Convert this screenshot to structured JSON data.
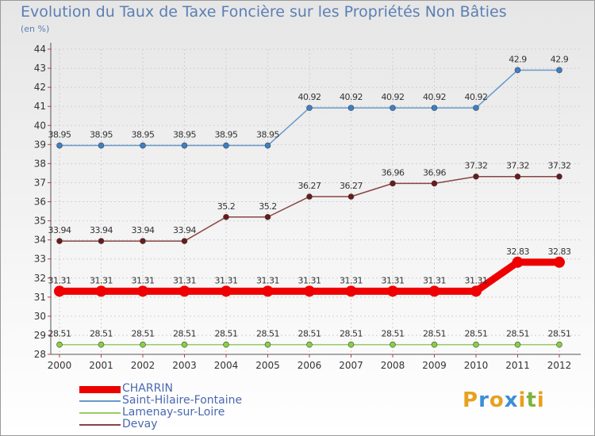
{
  "header": {
    "title": "Evolution du Taux de Taxe Foncière sur les Propriétés Non Bâties",
    "unit": "(en %)"
  },
  "logo": {
    "letters": [
      "P",
      "r",
      "o",
      "x",
      "i",
      "t",
      "i"
    ],
    "colors": [
      "#e8a020",
      "#3c8fd4",
      "#e8a020",
      "#3c8fd4",
      "#e8a020",
      "#7cb342",
      "#e8a020"
    ]
  },
  "chart_data": {
    "type": "line",
    "title": "Evolution du Taux de Taxe Foncière sur les Propriétés Non Bâties",
    "ylabel": "(en %)",
    "xlabel": "",
    "x": [
      "2000",
      "2001",
      "2002",
      "2003",
      "2004",
      "2005",
      "2006",
      "2007",
      "2008",
      "2009",
      "2010",
      "2011",
      "2012"
    ],
    "ylim": [
      28,
      44
    ],
    "yticks": [
      28,
      29,
      30,
      31,
      32,
      33,
      34,
      35,
      36,
      37,
      38,
      39,
      40,
      41,
      42,
      43,
      44
    ],
    "grid": true,
    "legend_position": "bottom-left",
    "series": [
      {
        "name": "CHARRIN",
        "color": "#ee0000",
        "values": [
          31.31,
          31.31,
          31.31,
          31.31,
          31.31,
          31.31,
          31.31,
          31.31,
          31.31,
          31.31,
          31.31,
          32.83,
          32.83
        ],
        "labels": [
          "31.31",
          "31.31",
          "31.31",
          "31.31",
          "31.31",
          "31.31",
          "31.31",
          "31.31",
          "31.31",
          "31.31",
          "31.31",
          "32.83",
          "32.83"
        ]
      },
      {
        "name": "Saint-Hilaire-Fontaine",
        "color": "#6699cc",
        "values": [
          38.95,
          38.95,
          38.95,
          38.95,
          38.95,
          38.95,
          40.92,
          40.92,
          40.92,
          40.92,
          40.92,
          42.9,
          42.9
        ],
        "labels": [
          "38.95",
          "38.95",
          "38.95",
          "38.95",
          "38.95",
          "38.95",
          "40.92",
          "40.92",
          "40.92",
          "40.92",
          "40.92",
          "42.9",
          "42.9"
        ]
      },
      {
        "name": "Lamenay-sur-Loire",
        "color": "#99cc66",
        "values": [
          28.51,
          28.51,
          28.51,
          28.51,
          28.51,
          28.51,
          28.51,
          28.51,
          28.51,
          28.51,
          28.51,
          28.51,
          28.51
        ],
        "labels": [
          "28.51",
          "28.51",
          "28.51",
          "28.51",
          "28.51",
          "28.51",
          "28.51",
          "28.51",
          "28.51",
          "28.51",
          "28.51",
          "28.51",
          "28.51"
        ]
      },
      {
        "name": "Devay",
        "color": "#884444",
        "values": [
          33.94,
          33.94,
          33.94,
          33.94,
          35.2,
          35.2,
          36.27,
          36.27,
          36.96,
          36.96,
          37.32,
          37.32,
          37.32
        ],
        "labels": [
          "33.94",
          "33.94",
          "33.94",
          "33.94",
          "35.2",
          "35.2",
          "36.27",
          "36.27",
          "36.96",
          "36.96",
          "37.32",
          "37.32",
          "37.32"
        ]
      }
    ]
  }
}
